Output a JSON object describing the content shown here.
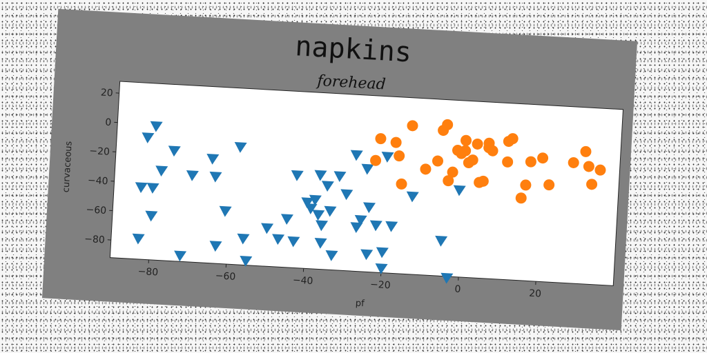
{
  "chart_data": {
    "type": "scatter",
    "title": "napkins",
    "subtitle": "forehead",
    "xlabel": "pf",
    "ylabel": "curvaceous",
    "xlim": [
      -90,
      40
    ],
    "ylim": [
      -92,
      28
    ],
    "xticks": [
      -80,
      -60,
      -40,
      -20,
      0,
      20
    ],
    "yticks": [
      20,
      0,
      -20,
      -40,
      -60,
      -80
    ],
    "grid": false,
    "legend": "none",
    "series": [
      {
        "marker": "triangle-down",
        "color": "#1f77b4",
        "points": [
          [
            -82,
            -9
          ],
          [
            -80,
            -1
          ],
          [
            -83,
            -43
          ],
          [
            -80,
            -43
          ],
          [
            -78,
            -31
          ],
          [
            -75,
            -17
          ],
          [
            -80,
            -62
          ],
          [
            -83,
            -78
          ],
          [
            -72,
            -88
          ],
          [
            -70,
            -33
          ],
          [
            -65,
            -21
          ],
          [
            -64,
            -33
          ],
          [
            -61,
            -56
          ],
          [
            -63,
            -80
          ],
          [
            -58,
            -12
          ],
          [
            -56,
            -74
          ],
          [
            -55,
            -89
          ],
          [
            -50,
            -66
          ],
          [
            -47,
            -73
          ],
          [
            -45,
            -59
          ],
          [
            -43,
            -74
          ],
          [
            -43,
            -29
          ],
          [
            -40,
            -47
          ],
          [
            -39,
            -51
          ],
          [
            -38,
            -45
          ],
          [
            -37,
            -55
          ],
          [
            -36,
            -62
          ],
          [
            -37,
            -28
          ],
          [
            -35,
            -35
          ],
          [
            -36,
            -74
          ],
          [
            -34,
            -52
          ],
          [
            -33,
            -82
          ],
          [
            -32,
            -28
          ],
          [
            -30,
            -40
          ],
          [
            -28,
            -13
          ],
          [
            -27,
            -62
          ],
          [
            -26,
            -57
          ],
          [
            -25,
            -22
          ],
          [
            -24,
            -48
          ],
          [
            -24,
            -80
          ],
          [
            -22,
            -60
          ],
          [
            -20,
            -78
          ],
          [
            -20,
            -89
          ],
          [
            -20,
            -13
          ],
          [
            -18,
            -60
          ],
          [
            -13,
            -39
          ],
          [
            -5,
            -68
          ],
          [
            -3,
            -93
          ],
          [
            -1,
            -33
          ]
        ]
      },
      {
        "marker": "circle",
        "color": "#ff7f0e",
        "points": [
          [
            -23,
            -16
          ],
          [
            -22,
            -1
          ],
          [
            -18,
            -3
          ],
          [
            -17,
            -12
          ],
          [
            -16,
            -31
          ],
          [
            -14,
            9
          ],
          [
            -10,
            -20
          ],
          [
            -7,
            -14
          ],
          [
            -6,
            7
          ],
          [
            -5,
            11
          ],
          [
            -4,
            -27
          ],
          [
            -3,
            -21
          ],
          [
            -2,
            -6
          ],
          [
            -1,
            -8
          ],
          [
            0,
            -6
          ],
          [
            0,
            1
          ],
          [
            1,
            -14
          ],
          [
            2,
            -12
          ],
          [
            3,
            -1
          ],
          [
            4,
            -27
          ],
          [
            5,
            -26
          ],
          [
            6,
            0
          ],
          [
            6,
            -3
          ],
          [
            7,
            -5
          ],
          [
            11,
            2
          ],
          [
            11,
            -12
          ],
          [
            12,
            4
          ],
          [
            15,
            -36
          ],
          [
            16,
            -27
          ],
          [
            17,
            -11
          ],
          [
            20,
            -8
          ],
          [
            22,
            -26
          ],
          [
            28,
            -10
          ],
          [
            31,
            -2
          ],
          [
            32,
            -12
          ],
          [
            33,
            -24
          ],
          [
            35,
            -14
          ]
        ]
      }
    ]
  }
}
